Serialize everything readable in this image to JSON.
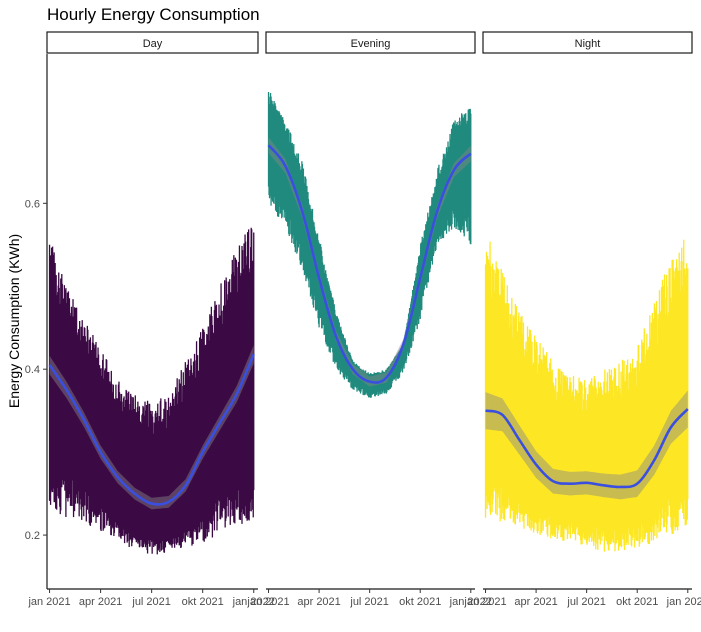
{
  "chart_data": {
    "type": "line",
    "title": "Hourly Energy Consumption",
    "xlabel": "",
    "ylabel": "Energy Consumption (KWh)",
    "ylim": [
      0.135,
      0.78
    ],
    "yticks": [
      0.2,
      0.4,
      0.6
    ],
    "ytick_labels": [
      "0.2",
      "0.4",
      "0.6"
    ],
    "xlim": [
      -0.15,
      12.25
    ],
    "xticks": [
      0,
      3,
      6,
      9,
      12
    ],
    "xtick_labels": [
      "jan 2021",
      "apr 2021",
      "jul 2021",
      "okt 2021",
      "jan 2022"
    ],
    "x_unit": "months since jan 2021",
    "legend": "none",
    "grid": false,
    "smooth_color": "#3a4fe0",
    "ribbon_color": "#888888",
    "facets": [
      {
        "strip": "Day",
        "color": "#3b0a45",
        "upper": [
          [
            0,
            0.56
          ],
          [
            1,
            0.5
          ],
          [
            2,
            0.46
          ],
          [
            3,
            0.43
          ],
          [
            4,
            0.39
          ],
          [
            5,
            0.37
          ],
          [
            6,
            0.36
          ],
          [
            7,
            0.37
          ],
          [
            8,
            0.41
          ],
          [
            9,
            0.45
          ],
          [
            10,
            0.5
          ],
          [
            11,
            0.55
          ],
          [
            12,
            0.58
          ]
        ],
        "lower": [
          [
            0,
            0.23
          ],
          [
            1,
            0.22
          ],
          [
            2,
            0.215
          ],
          [
            3,
            0.205
          ],
          [
            4,
            0.195
          ],
          [
            5,
            0.18
          ],
          [
            6,
            0.175
          ],
          [
            7,
            0.18
          ],
          [
            8,
            0.185
          ],
          [
            9,
            0.19
          ],
          [
            10,
            0.2
          ],
          [
            11,
            0.21
          ],
          [
            12,
            0.22
          ]
        ],
        "smooth": [
          [
            0,
            0.405
          ],
          [
            1,
            0.375
          ],
          [
            2,
            0.34
          ],
          [
            3,
            0.3
          ],
          [
            4,
            0.27
          ],
          [
            5,
            0.25
          ],
          [
            6,
            0.238
          ],
          [
            7,
            0.24
          ],
          [
            8,
            0.26
          ],
          [
            9,
            0.3
          ],
          [
            10,
            0.335
          ],
          [
            11,
            0.37
          ],
          [
            12,
            0.418
          ]
        ],
        "ribbon_halfwidth": 0.007
      },
      {
        "strip": "Evening",
        "color": "#1f8a7d",
        "upper": [
          [
            0,
            0.74
          ],
          [
            1,
            0.7
          ],
          [
            2,
            0.65
          ],
          [
            3,
            0.56
          ],
          [
            4,
            0.47
          ],
          [
            5,
            0.41
          ],
          [
            6,
            0.395
          ],
          [
            7,
            0.4
          ],
          [
            8,
            0.43
          ],
          [
            9,
            0.55
          ],
          [
            10,
            0.64
          ],
          [
            11,
            0.7
          ],
          [
            12,
            0.72
          ]
        ],
        "lower": [
          [
            0,
            0.6
          ],
          [
            1,
            0.57
          ],
          [
            2,
            0.52
          ],
          [
            3,
            0.45
          ],
          [
            4,
            0.4
          ],
          [
            5,
            0.375
          ],
          [
            6,
            0.365
          ],
          [
            7,
            0.37
          ],
          [
            8,
            0.395
          ],
          [
            9,
            0.46
          ],
          [
            10,
            0.55
          ],
          [
            11,
            0.57
          ],
          [
            12,
            0.55
          ]
        ],
        "smooth": [
          [
            0,
            0.67
          ],
          [
            1,
            0.645
          ],
          [
            2,
            0.59
          ],
          [
            3,
            0.51
          ],
          [
            4,
            0.44
          ],
          [
            5,
            0.4
          ],
          [
            6,
            0.385
          ],
          [
            7,
            0.39
          ],
          [
            8,
            0.43
          ],
          [
            9,
            0.51
          ],
          [
            10,
            0.59
          ],
          [
            11,
            0.64
          ],
          [
            12,
            0.66
          ]
        ],
        "ribbon_halfwidth": 0.006
      },
      {
        "strip": "Night",
        "color": "#fde725",
        "upper": [
          [
            0,
            0.57
          ],
          [
            1,
            0.52
          ],
          [
            2,
            0.47
          ],
          [
            3,
            0.44
          ],
          [
            4,
            0.41
          ],
          [
            5,
            0.395
          ],
          [
            6,
            0.39
          ],
          [
            7,
            0.4
          ],
          [
            8,
            0.41
          ],
          [
            9,
            0.43
          ],
          [
            10,
            0.48
          ],
          [
            11,
            0.54
          ],
          [
            12,
            0.57
          ]
        ],
        "lower": [
          [
            0,
            0.22
          ],
          [
            1,
            0.215
          ],
          [
            2,
            0.21
          ],
          [
            3,
            0.2
          ],
          [
            4,
            0.195
          ],
          [
            5,
            0.19
          ],
          [
            6,
            0.185
          ],
          [
            7,
            0.18
          ],
          [
            8,
            0.18
          ],
          [
            9,
            0.185
          ],
          [
            10,
            0.19
          ],
          [
            11,
            0.2
          ],
          [
            12,
            0.21
          ]
        ],
        "smooth": [
          [
            0,
            0.35
          ],
          [
            1,
            0.345
          ],
          [
            2,
            0.315
          ],
          [
            3,
            0.285
          ],
          [
            4,
            0.265
          ],
          [
            5,
            0.262
          ],
          [
            6,
            0.263
          ],
          [
            7,
            0.26
          ],
          [
            8,
            0.258
          ],
          [
            9,
            0.262
          ],
          [
            10,
            0.29
          ],
          [
            11,
            0.33
          ],
          [
            12,
            0.352
          ]
        ],
        "ribbon_halfwidth": 0.014
      }
    ]
  }
}
